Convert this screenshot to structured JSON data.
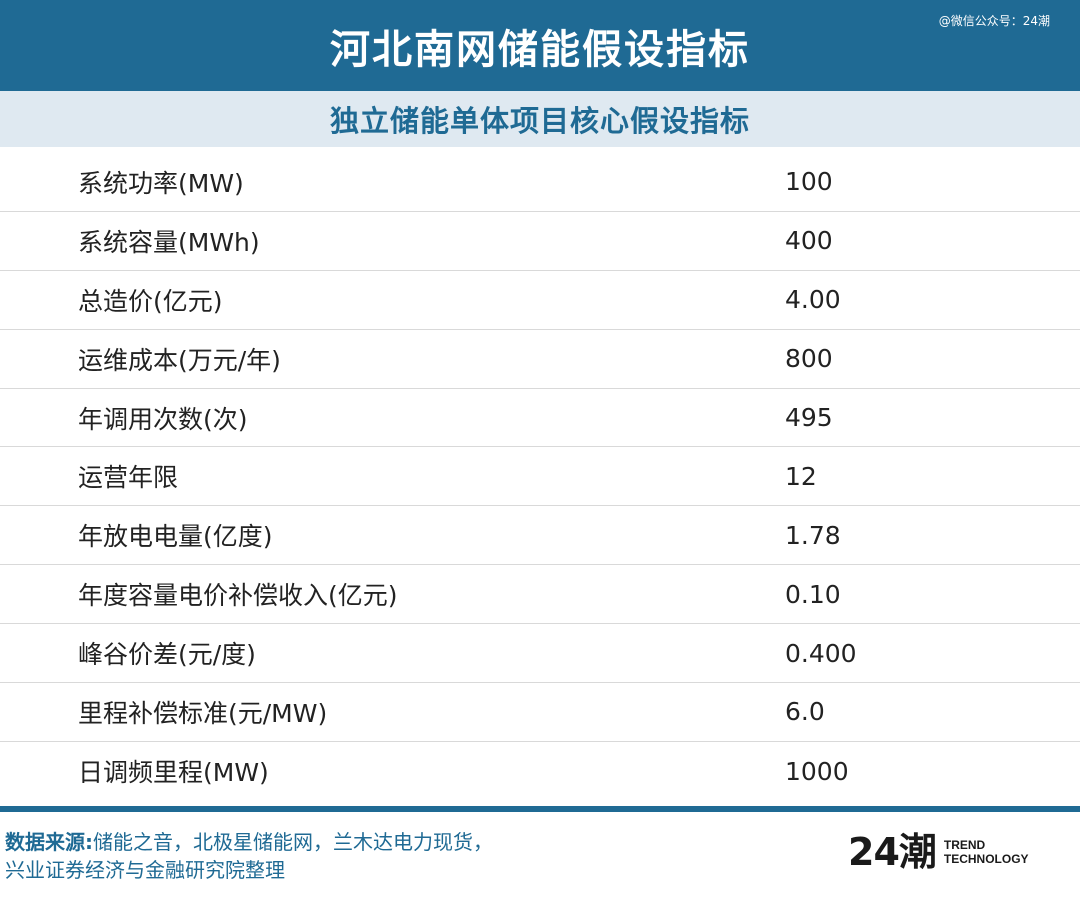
{
  "header": {
    "title": "河北南网储能假设指标",
    "watermark": "@微信公众号：24潮"
  },
  "subheader": {
    "title": "独立储能单体项目核心假设指标"
  },
  "table": {
    "rows": [
      {
        "label": "系统功率(MW)",
        "value": "100"
      },
      {
        "label": "系统容量(MWh)",
        "value": "400"
      },
      {
        "label": "总造价(亿元)",
        "value": "4.00"
      },
      {
        "label": "运维成本(万元/年)",
        "value": "800"
      },
      {
        "label": "年调用次数(次)",
        "value": "495"
      },
      {
        "label": "运营年限",
        "value": "12"
      },
      {
        "label": "年放电电量(亿度)",
        "value": "1.78"
      },
      {
        "label": "年度容量电价补偿收入(亿元)",
        "value": "0.10"
      },
      {
        "label": "峰谷价差(元/度)",
        "value": "0.400"
      },
      {
        "label": "里程补偿标准(元/MW)",
        "value": "6.0"
      },
      {
        "label": "日调频里程(MW)",
        "value": "1000"
      }
    ]
  },
  "footer": {
    "source_label": "数据来源:",
    "source_line1": "储能之音，北极星储能网，兰木达电力现货，",
    "source_line2": "兴业证券经济与金融研究院整理",
    "logo_mark": "24潮",
    "logo_line1": "TREND",
    "logo_line2": "TECHNOLOGY"
  },
  "colors": {
    "header_bg": "#1f6a94",
    "subheader_bg": "#dfe9f1",
    "accent_text": "#1f6a94",
    "divider": "#d9d9d9"
  }
}
